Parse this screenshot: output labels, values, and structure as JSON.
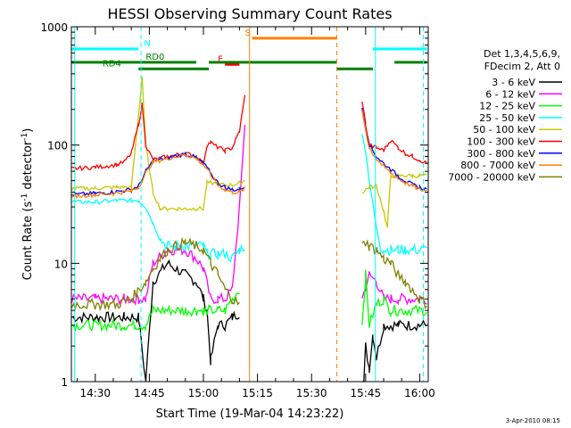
{
  "chart_data": {
    "type": "line",
    "title": "HESSI Observing Summary Count Rates",
    "xlabel": "Start Time (19-Mar-04 14:23:22)",
    "ylabel": "Count Rate (s⁻¹ detector⁻¹)",
    "ylabel_parts": {
      "a": "Count Rate (s",
      "b": "-1",
      "c": " detector",
      "d": "-1",
      "e": ")"
    },
    "yscale": "log",
    "ylim": [
      1,
      1000
    ],
    "xlim_minutes": [
      23.37,
      122.37
    ],
    "x_ticks": [
      {
        "m": 30,
        "label": "14:30"
      },
      {
        "m": 45,
        "label": "14:45"
      },
      {
        "m": 60,
        "label": "15:00"
      },
      {
        "m": 75,
        "label": "15:15"
      },
      {
        "m": 90,
        "label": "15:30"
      },
      {
        "m": 105,
        "label": "15:45"
      },
      {
        "m": 120,
        "label": "16:00"
      }
    ],
    "y_ticks": [
      {
        "v": 1,
        "label": "1"
      },
      {
        "v": 10,
        "label": "10"
      },
      {
        "v": 100,
        "label": "100"
      },
      {
        "v": 1000,
        "label": "1000"
      }
    ],
    "legend_header": [
      "Det 1,3,4,5,6,9,",
      "FDecim 2, Att 0"
    ],
    "legend_position": "right",
    "timestamp": "3-Apr-2010 08:15",
    "series": [
      {
        "name": "3 - 6 keV",
        "color": "#000000",
        "x": [
          23.5,
          30,
          38,
          42,
          44,
          46,
          50,
          55,
          58,
          60,
          61,
          62,
          64,
          66,
          68,
          70,
          104,
          105,
          106,
          107,
          108,
          110,
          112,
          114,
          116,
          120,
          122
        ],
        "y": [
          3.5,
          3.5,
          3.5,
          3.5,
          1,
          7,
          10,
          8,
          7,
          5,
          4,
          1.5,
          3,
          3,
          3.5,
          3.8,
          0.3,
          2,
          1.3,
          2.5,
          1.6,
          3,
          3,
          3,
          3,
          3,
          3
        ]
      },
      {
        "name": "6 - 12 keV",
        "color": "#ff00ff",
        "x": [
          23.5,
          30,
          38,
          42,
          44,
          46,
          50,
          55,
          58,
          60,
          62,
          64,
          66,
          68,
          70,
          71.5,
          104,
          106,
          108,
          110,
          112,
          114,
          116,
          118,
          120,
          122
        ],
        "y": [
          5,
          5,
          5,
          5,
          5,
          10,
          13,
          13,
          11,
          9,
          5,
          5,
          5,
          6,
          30,
          150,
          5,
          8,
          7,
          5,
          5,
          5,
          5,
          5,
          5,
          5
        ]
      },
      {
        "name": "12 - 25 keV",
        "color": "#00ff00",
        "x": [
          23.5,
          30,
          38,
          41,
          42,
          44,
          46,
          50,
          55,
          58,
          60,
          60.5,
          62,
          64,
          66,
          68,
          70,
          104,
          105,
          106,
          108,
          110,
          112,
          114,
          116,
          118,
          120,
          122
        ],
        "y": [
          3,
          3,
          3,
          3,
          3,
          3,
          4,
          4,
          4,
          4,
          4,
          4,
          4,
          4,
          4,
          5,
          6,
          3,
          8,
          3,
          4.5,
          5,
          4,
          4,
          4,
          4,
          4,
          4
        ]
      },
      {
        "name": "25 - 50 keV",
        "color": "#00ffff",
        "x": [
          23.5,
          30,
          36,
          38,
          40,
          42,
          44,
          46,
          48,
          50,
          55,
          58,
          60,
          61,
          62,
          64,
          66,
          68,
          70,
          71.5,
          104,
          105,
          106,
          108,
          109,
          110,
          112,
          114,
          116,
          118,
          120,
          122
        ],
        "y": [
          33,
          33,
          34,
          34,
          34,
          34,
          30,
          22,
          16,
          14,
          14,
          14,
          14,
          12,
          12,
          12,
          12,
          11,
          13,
          14,
          120,
          90,
          50,
          20,
          14,
          13,
          13,
          13,
          13,
          13,
          13,
          13
        ]
      },
      {
        "name": "50 - 100 keV",
        "color": "#c8c800",
        "x": [
          23.5,
          30,
          36,
          40,
          42,
          43,
          44,
          46,
          48,
          50,
          55,
          58,
          60,
          61,
          62,
          64,
          66,
          68,
          70,
          71.5,
          104,
          105,
          106,
          108,
          110,
          111,
          112,
          114,
          116,
          118,
          120,
          122
        ],
        "y": [
          43,
          43,
          44,
          44,
          180,
          380,
          100,
          40,
          29,
          29,
          29,
          29,
          29,
          48,
          48,
          47,
          46,
          46,
          48,
          50,
          40,
          42,
          44,
          45,
          28,
          20,
          55,
          55,
          55,
          55,
          55,
          55
        ]
      },
      {
        "name": "100 - 300 keV",
        "color": "#ff0000",
        "x": [
          23.5,
          30,
          36,
          38,
          40,
          42,
          43,
          44,
          46,
          50,
          55,
          58,
          60,
          61,
          62,
          64,
          66,
          68,
          70,
          71.5,
          104,
          105,
          106,
          108,
          110,
          112,
          114,
          116,
          118,
          120,
          122
        ],
        "y": [
          63,
          65,
          68,
          72,
          85,
          150,
          220,
          100,
          75,
          80,
          85,
          80,
          70,
          100,
          105,
          95,
          90,
          95,
          130,
          260,
          240,
          150,
          100,
          95,
          90,
          110,
          95,
          85,
          80,
          75,
          70
        ]
      },
      {
        "name": "300 - 800 keV",
        "color": "#0000ff",
        "x": [
          23.5,
          30,
          35,
          40,
          42,
          44,
          46,
          50,
          55,
          58,
          60,
          62,
          64,
          66,
          68,
          70,
          71.5,
          104,
          105,
          106,
          108,
          110,
          112,
          114,
          116,
          118,
          120,
          122
        ],
        "y": [
          38,
          39,
          40,
          42,
          45,
          60,
          73,
          78,
          84,
          78,
          70,
          58,
          48,
          44,
          42,
          42,
          45,
          200,
          140,
          100,
          80,
          70,
          62,
          55,
          50,
          46,
          44,
          42
        ]
      },
      {
        "name": "800 - 7000 keV",
        "color": "#ff8000",
        "x": [
          23.5,
          30,
          35,
          40,
          42,
          44,
          46,
          50,
          55,
          58,
          60,
          62,
          64,
          66,
          68,
          70,
          71.5,
          104,
          105,
          106,
          108,
          110,
          112,
          114,
          116,
          118,
          120,
          122
        ],
        "y": [
          37,
          38,
          39,
          41,
          44,
          58,
          72,
          77,
          83,
          77,
          68,
          56,
          46,
          42,
          40,
          40,
          43,
          195,
          135,
          95,
          76,
          66,
          58,
          52,
          48,
          45,
          42,
          41
        ]
      },
      {
        "name": "7000 - 20000 keV",
        "color": "#7f7f00",
        "x": [
          23.5,
          30,
          36,
          40,
          44,
          46,
          48,
          50,
          55,
          58,
          60,
          62,
          64,
          66,
          68,
          70,
          104,
          105,
          106,
          108,
          110,
          112,
          114,
          116,
          118,
          120,
          122
        ],
        "y": [
          4.5,
          4.5,
          4.5,
          5,
          7,
          9,
          11,
          13,
          15,
          14,
          13,
          10,
          8,
          6,
          5,
          4.5,
          14,
          15,
          14,
          13,
          11,
          10,
          8,
          7,
          6,
          5,
          4.5
        ]
      }
    ],
    "markers": [
      {
        "label": "N",
        "color": "#00ffff",
        "y": 650,
        "segments": [
          [
            23.5,
            42
          ],
          [
            107,
            122
          ]
        ],
        "label_at": 43.5
      },
      {
        "label": "S",
        "color": "#ff8000",
        "y": 800,
        "segments": [
          [
            73.5,
            97
          ]
        ],
        "label_at": 71.5
      },
      {
        "label": "F",
        "color": "#ff0000",
        "y": 480,
        "segments": [
          [
            66,
            70
          ]
        ],
        "label_at": 64
      },
      {
        "label": "RD0",
        "color": "#008000",
        "y": 500,
        "segments": [
          [
            23.5,
            58
          ],
          [
            61.5,
            97
          ],
          [
            113,
            122
          ]
        ],
        "label_at": 44
      },
      {
        "label": "RD4",
        "color": "#008000",
        "y": 440,
        "segments": [
          [
            42,
            61.5
          ],
          [
            97,
            107
          ]
        ],
        "label_at": 32
      }
    ],
    "vlines": [
      {
        "m": 24.3,
        "color": "#00ffff",
        "style": "solid"
      },
      {
        "m": 42.7,
        "color": "#00ffff",
        "style": "dashed"
      },
      {
        "m": 72.8,
        "color": "#ff8000",
        "style": "solid"
      },
      {
        "m": 97.0,
        "color": "#ff8000",
        "style": "dashed"
      },
      {
        "m": 107.7,
        "color": "#00ffff",
        "style": "solid"
      },
      {
        "m": 121.0,
        "color": "#00ffff",
        "style": "dashed"
      }
    ]
  }
}
